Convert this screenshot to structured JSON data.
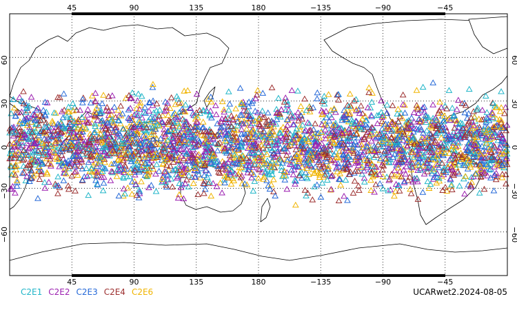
{
  "map": {
    "projection": "cylindrical equidistant, centered on 180",
    "lon_range": [
      0,
      360
    ],
    "lat_range": [
      -90,
      90
    ],
    "lon_ticks": [
      {
        "lon": 45,
        "label": "45"
      },
      {
        "lon": 90,
        "label": "90"
      },
      {
        "lon": 135,
        "label": "135"
      },
      {
        "lon": 180,
        "label": "180"
      },
      {
        "lon": 225,
        "label": "−135"
      },
      {
        "lon": 270,
        "label": "−90"
      },
      {
        "lon": 315,
        "label": "−45"
      }
    ],
    "lat_ticks": [
      {
        "lat": 60,
        "label": "60"
      },
      {
        "lat": 30,
        "label": "30"
      },
      {
        "lat": 0,
        "label": "0"
      },
      {
        "lat": -30,
        "label": "−30"
      },
      {
        "lat": -60,
        "label": "−60"
      }
    ],
    "grid": "dotted",
    "coast_color": "#000000"
  },
  "chart_data": {
    "type": "scatter",
    "marker": "open triangle",
    "lat_band": [
      -45,
      45
    ],
    "approx_total_points": 3400,
    "series": [
      {
        "name": "C2E1",
        "color": "#1fb5c8"
      },
      {
        "name": "C2E2",
        "color": "#9b1fb0"
      },
      {
        "name": "C2E3",
        "color": "#2468d8"
      },
      {
        "name": "C2E4",
        "color": "#9c2e2e"
      },
      {
        "name": "C2E6",
        "color": "#f0b400"
      }
    ]
  },
  "caption": "UCARwet2.2024-08-05"
}
